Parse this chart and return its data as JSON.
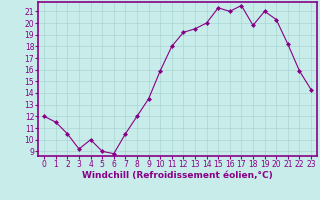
{
  "x": [
    0,
    1,
    2,
    3,
    4,
    5,
    6,
    7,
    8,
    9,
    10,
    11,
    12,
    13,
    14,
    15,
    16,
    17,
    18,
    19,
    20,
    21,
    22,
    23
  ],
  "y": [
    12,
    11.5,
    10.5,
    9.2,
    10.0,
    9.0,
    8.8,
    10.5,
    12.0,
    13.5,
    15.9,
    18.0,
    19.2,
    19.5,
    20.0,
    21.3,
    21.0,
    21.5,
    19.8,
    21.0,
    20.3,
    18.2,
    15.9,
    14.3
  ],
  "line_color": "#880088",
  "marker": "D",
  "marker_size": 2.0,
  "bg_color": "#c8ecea",
  "grid_color": "#aad4d2",
  "xlabel": "Windchill (Refroidissement éolien,°C)",
  "xlim": [
    -0.5,
    23.5
  ],
  "ylim": [
    8.6,
    21.8
  ],
  "yticks": [
    9,
    10,
    11,
    12,
    13,
    14,
    15,
    16,
    17,
    18,
    19,
    20,
    21
  ],
  "xticks": [
    0,
    1,
    2,
    3,
    4,
    5,
    6,
    7,
    8,
    9,
    10,
    11,
    12,
    13,
    14,
    15,
    16,
    17,
    18,
    19,
    20,
    21,
    22,
    23
  ],
  "tick_font_size": 5.5,
  "label_font_size": 6.5,
  "spine_color": "#880088",
  "line_width": 0.8,
  "spine_linewidth": 1.2
}
